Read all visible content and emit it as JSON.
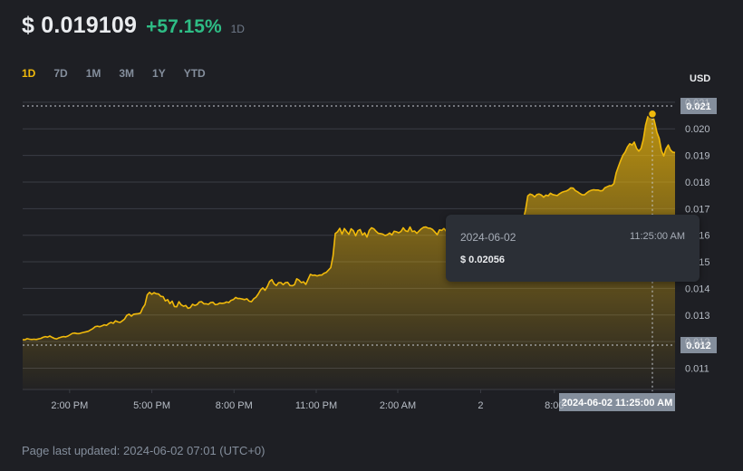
{
  "header": {
    "price": "$ 0.019109",
    "change": "+57.15%",
    "period": "1D"
  },
  "tabs": [
    "1D",
    "7D",
    "1M",
    "3M",
    "1Y",
    "YTD"
  ],
  "active_tab": "1D",
  "footer": "Page last updated: 2024-06-02 07:01 (UTC+0)",
  "tooltip": {
    "date": "2024-06-02",
    "time": "11:25:00 AM",
    "price": "$ 0.02056"
  },
  "crosshair": {
    "x_label": "2024-06-02 11:25:00 AM",
    "marker_price": 0.02056,
    "high_label": "0.021",
    "low_label": "0.012"
  },
  "colors": {
    "line": "#f0b90b",
    "positive": "#2ebd85",
    "background": "#1e1f24",
    "grid": "#3a3d44",
    "tooltip_bg": "#2b2f36"
  },
  "chart_data": {
    "type": "area",
    "title": "",
    "xlabel": "",
    "ylabel": "USD",
    "x_tick_labels": [
      "2:00 PM",
      "5:00 PM",
      "8:00 PM",
      "11:00 PM",
      "2:00 AM",
      "2",
      "8:00"
    ],
    "y_tick_labels": [
      "0.011",
      "0.012",
      "0.013",
      "0.014",
      "0.015",
      "0.016",
      "0.017",
      "0.018",
      "0.019",
      "0.020",
      "0.021"
    ],
    "ylim": [
      0.0102,
      0.0212
    ],
    "grid": true,
    "series": [
      {
        "values": [
          0.01207,
          0.01207,
          0.01211,
          0.01209,
          0.01208,
          0.01209,
          0.01208,
          0.0121,
          0.01212,
          0.01216,
          0.01219,
          0.01217,
          0.01221,
          0.01216,
          0.01212,
          0.0121,
          0.01214,
          0.01217,
          0.01219,
          0.01218,
          0.01221,
          0.01226,
          0.01231,
          0.01232,
          0.0123,
          0.0123,
          0.01233,
          0.01235,
          0.01237,
          0.01239,
          0.01244,
          0.01249,
          0.01256,
          0.01258,
          0.01256,
          0.01259,
          0.01263,
          0.01261,
          0.01268,
          0.01272,
          0.01269,
          0.01278,
          0.01274,
          0.01272,
          0.01278,
          0.01285,
          0.01299,
          0.01303,
          0.01296,
          0.01303,
          0.01304,
          0.01305,
          0.01307,
          0.01326,
          0.01339,
          0.01376,
          0.01385,
          0.01378,
          0.01384,
          0.0138,
          0.01379,
          0.0137,
          0.01369,
          0.01353,
          0.01358,
          0.01343,
          0.01352,
          0.01332,
          0.01331,
          0.0135,
          0.01338,
          0.01333,
          0.01336,
          0.01325,
          0.01328,
          0.0134,
          0.01336,
          0.01339,
          0.01349,
          0.0135,
          0.01342,
          0.01342,
          0.0134,
          0.01347,
          0.01348,
          0.01339,
          0.0134,
          0.01345,
          0.01344,
          0.01345,
          0.01349,
          0.01347,
          0.01355,
          0.01358,
          0.01366,
          0.01362,
          0.01362,
          0.0136,
          0.01358,
          0.01361,
          0.01352,
          0.0135,
          0.01361,
          0.01367,
          0.01379,
          0.01394,
          0.01402,
          0.01393,
          0.01407,
          0.01426,
          0.01433,
          0.01417,
          0.01411,
          0.01422,
          0.01422,
          0.01414,
          0.01422,
          0.01423,
          0.01411,
          0.0141,
          0.01414,
          0.01436,
          0.01431,
          0.01422,
          0.01425,
          0.01415,
          0.01434,
          0.01453,
          0.01449,
          0.0145,
          0.01447,
          0.0145,
          0.0145,
          0.01457,
          0.0146,
          0.01469,
          0.01478,
          0.01521,
          0.01606,
          0.01613,
          0.01626,
          0.01604,
          0.01625,
          0.01614,
          0.01603,
          0.01624,
          0.01617,
          0.01598,
          0.01617,
          0.01621,
          0.01601,
          0.01609,
          0.01593,
          0.01618,
          0.01628,
          0.01624,
          0.01615,
          0.01607,
          0.01606,
          0.01604,
          0.01599,
          0.01602,
          0.01608,
          0.01601,
          0.01615,
          0.01613,
          0.01609,
          0.01614,
          0.01628,
          0.01617,
          0.01614,
          0.01631,
          0.01614,
          0.01616,
          0.01607,
          0.01616,
          0.01624,
          0.0163,
          0.01631,
          0.01627,
          0.01626,
          0.01621,
          0.01612,
          0.01602,
          0.0162,
          0.01618,
          0.01625,
          0.01615,
          0.01627,
          0.01631,
          0.01633,
          0.01625,
          0.01612,
          0.01618,
          0.01615,
          0.01612,
          0.01614,
          0.01612,
          0.01608,
          0.0162,
          0.01628,
          0.01612,
          0.01609,
          0.0162,
          0.0162,
          0.01625,
          0.01617,
          0.01615,
          0.01627,
          0.01615,
          0.01619,
          0.0162,
          0.01603,
          0.01607,
          0.01627,
          0.01624,
          0.01615,
          0.01624,
          0.01624,
          0.01619,
          0.01643,
          0.01659,
          0.01695,
          0.01748,
          0.01755,
          0.01752,
          0.01744,
          0.01753,
          0.01755,
          0.01751,
          0.01743,
          0.01751,
          0.01748,
          0.01758,
          0.01753,
          0.01751,
          0.01749,
          0.01756,
          0.01761,
          0.01764,
          0.01766,
          0.01771,
          0.01778,
          0.01777,
          0.01768,
          0.01763,
          0.01757,
          0.01752,
          0.01752,
          0.01759,
          0.01765,
          0.01769,
          0.01771,
          0.0177,
          0.0177,
          0.01767,
          0.01768,
          0.01778,
          0.01782,
          0.01786,
          0.01786,
          0.01794,
          0.01834,
          0.01858,
          0.01881,
          0.01901,
          0.01913,
          0.01932,
          0.01944,
          0.01939,
          0.0195,
          0.01927,
          0.01916,
          0.01927,
          0.0196,
          0.02014,
          0.02046,
          0.02051,
          0.02056,
          0.02025,
          0.01987,
          0.01964,
          0.01918,
          0.01898,
          0.01925,
          0.01939,
          0.0192,
          0.01912,
          0.01911
        ]
      }
    ]
  }
}
